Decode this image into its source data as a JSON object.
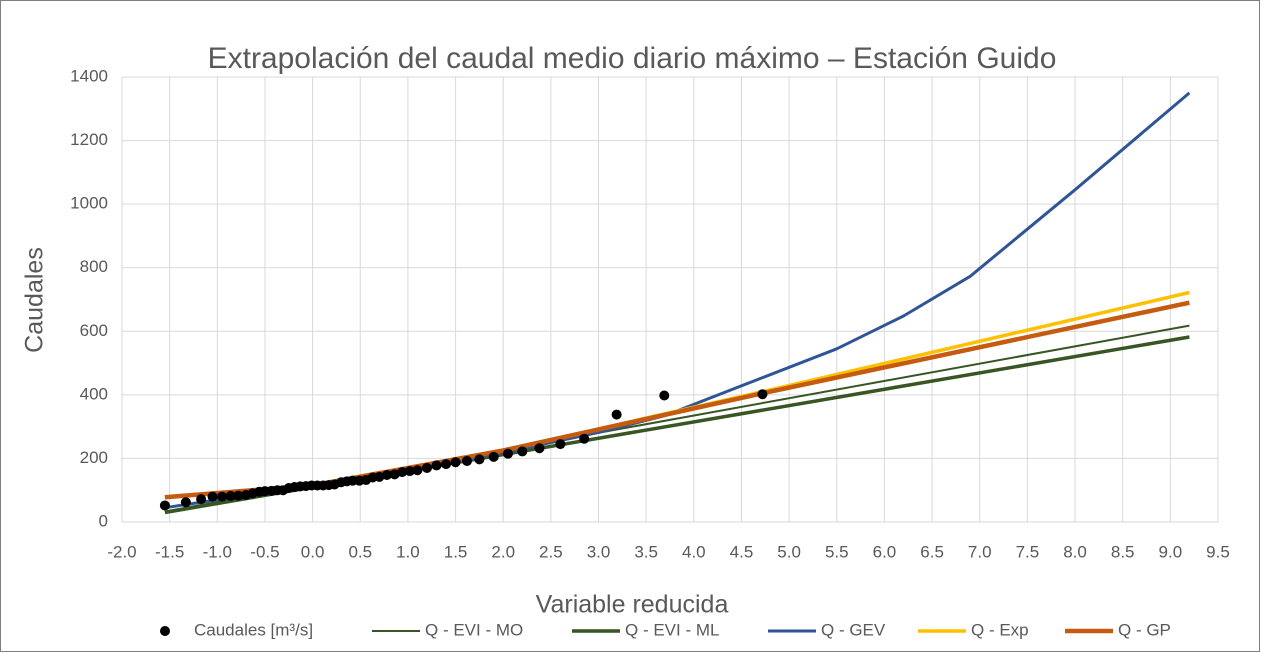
{
  "chart_data": {
    "type": "line",
    "title": "Extrapolación del caudal medio diario máximo – Estación Guido",
    "x_label": "Variable reducida",
    "y_label": "Caudales",
    "xlim": [
      -2,
      9.5
    ],
    "ylim": [
      0,
      1400
    ],
    "xticks": [
      {
        "value": -2,
        "label": "-2.0"
      },
      -1.5,
      {
        "value": -1,
        "label": "-1.0"
      },
      -0.5,
      {
        "value": 0,
        "label": "0.0"
      },
      0.5,
      {
        "value": 1,
        "label": "1.0"
      },
      1.5,
      {
        "value": 2,
        "label": "2.0"
      },
      2.5,
      {
        "value": 3,
        "label": "3.0"
      },
      3.5,
      {
        "value": 4,
        "label": "4.0"
      },
      4.5,
      {
        "value": 5,
        "label": "5.0"
      },
      5.5,
      {
        "value": 6,
        "label": "6.0"
      },
      6.5,
      {
        "value": 7,
        "label": "7.0"
      },
      7.5,
      {
        "value": 8,
        "label": "8.0"
      },
      8.5,
      {
        "value": 9,
        "label": "9.0"
      },
      9.5
    ],
    "yticks": [
      0,
      200,
      400,
      600,
      800,
      1000,
      1200,
      1400
    ],
    "grid": true,
    "legend": "bottom",
    "series": [
      {
        "name": "Caudales [m³/s]",
        "color": "#000000",
        "style": "markers",
        "x": [
          -1.55,
          -1.33,
          -1.17,
          -1.05,
          -0.95,
          -0.86,
          -0.78,
          -0.7,
          -0.63,
          -0.56,
          -0.5,
          -0.43,
          -0.37,
          -0.31,
          -0.25,
          -0.19,
          -0.13,
          -0.07,
          -0.01,
          0.05,
          0.11,
          0.17,
          0.23,
          0.3,
          0.36,
          0.42,
          0.49,
          0.56,
          0.63,
          0.7,
          0.78,
          0.86,
          0.94,
          1.02,
          1.1,
          1.2,
          1.3,
          1.4,
          1.5,
          1.62,
          1.75,
          1.9,
          2.05,
          2.2,
          2.38,
          2.6,
          2.85,
          3.19,
          3.69,
          4.72
        ],
        "values": [
          52,
          62,
          72,
          80,
          80,
          82,
          83,
          85,
          90,
          95,
          97,
          98,
          100,
          100,
          107,
          110,
          112,
          113,
          115,
          115,
          115,
          116,
          118,
          125,
          128,
          130,
          130,
          132,
          140,
          142,
          148,
          150,
          157,
          160,
          163,
          170,
          178,
          182,
          188,
          192,
          197,
          205,
          215,
          222,
          232,
          245,
          262,
          338,
          398,
          402
        ]
      },
      {
        "name": "Q - EVI - MO",
        "color": "#375623",
        "style": "line",
        "width": 2,
        "x": [
          -1.55,
          9.2
        ],
        "values": [
          33,
          618
        ]
      },
      {
        "name": "Q - EVI - ML",
        "color": "#375623",
        "style": "line",
        "width": 3.5,
        "x": [
          -1.55,
          9.2
        ],
        "values": [
          30,
          582
        ]
      },
      {
        "name": "Q - GEV",
        "color": "#2f5597",
        "style": "line",
        "width": 3,
        "x": [
          -1.55,
          0,
          1,
          2,
          3,
          3.7,
          4.6,
          5.5,
          6.2,
          6.9,
          8,
          9.2
        ],
        "values": [
          45,
          115,
          160,
          218,
          282,
          335,
          440,
          545,
          648,
          773,
          1045,
          1350
        ]
      },
      {
        "name": "Q - Exp",
        "color": "#ffc000",
        "style": "line",
        "width": 3.5,
        "x": [
          -1.55,
          0,
          2,
          4.72,
          9.2
        ],
        "values": [
          78,
          115,
          225,
          410,
          722
        ]
      },
      {
        "name": "Q - GP",
        "color": "#c55a11",
        "style": "line",
        "width": 4.5,
        "x": [
          -1.55,
          0,
          2,
          4.72,
          9.2
        ],
        "values": [
          78,
          115,
          225,
          405,
          690
        ]
      }
    ]
  }
}
